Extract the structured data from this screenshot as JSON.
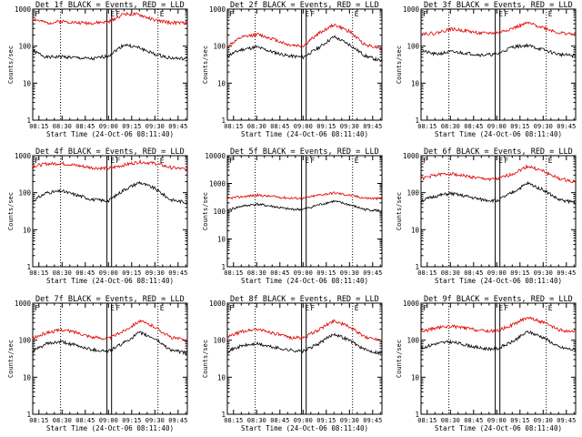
{
  "page": {
    "background": "#ffffff"
  },
  "style": {
    "events_color": "#000000",
    "lld_color": "#e00000",
    "axis_color": "#000000"
  },
  "common": {
    "ylabel": "Counts/sec",
    "xlabel": "Start Time (24-Oct-06 08:11:40)",
    "x_ticks": [
      "08:15",
      "08:30",
      "08:45",
      "09:00",
      "09:15",
      "09:30",
      "09:45"
    ],
    "y_ticks": [
      "1",
      "10",
      "100",
      "1000",
      "10000"
    ]
  },
  "chart_data": [
    {
      "type": "line",
      "title": "Det 1f BLACK = Events, RED = LLD",
      "ylim": [
        1,
        1000
      ],
      "yticks": [
        "1",
        "10",
        "100",
        "1000"
      ],
      "log_y": true,
      "x": [
        "08:11",
        "08:20",
        "08:30",
        "08:40",
        "08:50",
        "09:00",
        "09:10",
        "09:20",
        "09:30",
        "09:40",
        "09:50"
      ],
      "series": [
        {
          "name": "Events",
          "color": "#000000",
          "values": [
            75,
            50,
            52,
            48,
            45,
            55,
            110,
            90,
            60,
            48,
            45
          ]
        },
        {
          "name": "LLD",
          "color": "#e00000",
          "values": [
            550,
            420,
            470,
            430,
            420,
            450,
            750,
            700,
            500,
            430,
            420
          ]
        }
      ],
      "markers": [
        "F",
        "E",
        "F",
        "E"
      ]
    },
    {
      "type": "line",
      "title": "Det 2f BLACK = Events, RED = LLD",
      "ylim": [
        1,
        1000
      ],
      "yticks": [
        "1",
        "10",
        "100",
        "1000"
      ],
      "log_y": true,
      "x": [
        "08:11",
        "08:20",
        "08:30",
        "08:40",
        "08:50",
        "09:00",
        "09:10",
        "09:20",
        "09:30",
        "09:40",
        "09:50"
      ],
      "series": [
        {
          "name": "Events",
          "color": "#000000",
          "values": [
            55,
            80,
            95,
            70,
            55,
            50,
            90,
            180,
            110,
            55,
            40
          ]
        },
        {
          "name": "LLD",
          "color": "#e00000",
          "values": [
            100,
            170,
            210,
            160,
            110,
            100,
            220,
            380,
            250,
            110,
            90
          ]
        }
      ],
      "markers": [
        "F",
        "E",
        "F",
        "E"
      ]
    },
    {
      "type": "line",
      "title": "Det 3f BLACK = Events, RED = LLD",
      "ylim": [
        1,
        1000
      ],
      "yticks": [
        "1",
        "10",
        "100",
        "1000"
      ],
      "log_y": true,
      "x": [
        "08:11",
        "08:20",
        "08:30",
        "08:40",
        "08:50",
        "09:00",
        "09:10",
        "09:20",
        "09:30",
        "09:40",
        "09:50"
      ],
      "series": [
        {
          "name": "Events",
          "color": "#000000",
          "values": [
            75,
            60,
            70,
            65,
            58,
            60,
            95,
            105,
            80,
            60,
            55
          ]
        },
        {
          "name": "LLD",
          "color": "#e00000",
          "values": [
            220,
            220,
            290,
            260,
            220,
            230,
            300,
            420,
            320,
            230,
            210
          ]
        }
      ],
      "markers": [
        "F",
        "E",
        "F",
        "E"
      ]
    },
    {
      "type": "line",
      "title": "Det 4f BLACK = Events, RED = LLD",
      "ylim": [
        1,
        1000
      ],
      "yticks": [
        "1",
        "10",
        "100",
        "1000"
      ],
      "log_y": true,
      "x": [
        "08:11",
        "08:20",
        "08:30",
        "08:40",
        "08:50",
        "09:00",
        "09:10",
        "09:20",
        "09:30",
        "09:40",
        "09:50"
      ],
      "series": [
        {
          "name": "Events",
          "color": "#000000",
          "values": [
            60,
            100,
            110,
            85,
            65,
            60,
            120,
            190,
            130,
            65,
            55
          ]
        },
        {
          "name": "LLD",
          "color": "#e00000",
          "values": [
            520,
            600,
            620,
            540,
            470,
            450,
            560,
            680,
            620,
            480,
            430
          ]
        }
      ],
      "markers": [
        "F",
        "E",
        "F",
        "E"
      ]
    },
    {
      "type": "line",
      "title": "Det 5f BLACK = Events, RED = LLD",
      "ylim": [
        1,
        10000
      ],
      "yticks": [
        "1",
        "10",
        "100",
        "1000",
        "10000"
      ],
      "log_y": true,
      "x": [
        "08:11",
        "08:20",
        "08:30",
        "08:40",
        "08:50",
        "09:00",
        "09:10",
        "09:20",
        "09:30",
        "09:40",
        "09:50"
      ],
      "series": [
        {
          "name": "Events",
          "color": "#000000",
          "values": [
            110,
            150,
            180,
            150,
            120,
            115,
            170,
            230,
            170,
            115,
            105
          ]
        },
        {
          "name": "LLD",
          "color": "#e00000",
          "values": [
            290,
            330,
            380,
            340,
            300,
            290,
            380,
            460,
            380,
            300,
            280
          ]
        }
      ],
      "markers": [
        "F",
        "E",
        "F",
        "E"
      ]
    },
    {
      "type": "line",
      "title": "Det 6f BLACK = Events, RED = LLD",
      "ylim": [
        1,
        1000
      ],
      "yticks": [
        "1",
        "10",
        "100",
        "1000"
      ],
      "log_y": true,
      "x": [
        "08:11",
        "08:20",
        "08:30",
        "08:40",
        "08:50",
        "09:00",
        "09:10",
        "09:20",
        "09:30",
        "09:40",
        "09:50"
      ],
      "series": [
        {
          "name": "Events",
          "color": "#000000",
          "values": [
            60,
            80,
            95,
            80,
            65,
            60,
            100,
            180,
            120,
            65,
            55
          ]
        },
        {
          "name": "LLD",
          "color": "#e00000",
          "values": [
            240,
            300,
            330,
            280,
            240,
            230,
            320,
            520,
            380,
            240,
            200
          ]
        }
      ],
      "markers": [
        "F",
        "E",
        "F",
        "E"
      ]
    },
    {
      "type": "line",
      "title": "Det 7f BLACK = Events, RED = LLD",
      "ylim": [
        1,
        1000
      ],
      "yticks": [
        "1",
        "10",
        "100",
        "1000"
      ],
      "log_y": true,
      "x": [
        "08:11",
        "08:20",
        "08:30",
        "08:40",
        "08:50",
        "09:00",
        "09:10",
        "09:20",
        "09:30",
        "09:40",
        "09:50"
      ],
      "series": [
        {
          "name": "Events",
          "color": "#000000",
          "values": [
            50,
            80,
            90,
            70,
            55,
            50,
            85,
            160,
            110,
            55,
            45
          ]
        },
        {
          "name": "LLD",
          "color": "#e00000",
          "values": [
            110,
            160,
            190,
            160,
            120,
            110,
            180,
            330,
            230,
            120,
            100
          ]
        }
      ],
      "markers": [
        "F",
        "E",
        "F",
        "E"
      ]
    },
    {
      "type": "line",
      "title": "Det 8f BLACK = Events, RED = LLD",
      "ylim": [
        1,
        1000
      ],
      "yticks": [
        "1",
        "10",
        "100",
        "1000"
      ],
      "log_y": true,
      "x": [
        "08:11",
        "08:20",
        "08:30",
        "08:40",
        "08:50",
        "09:00",
        "09:10",
        "09:20",
        "09:30",
        "09:40",
        "09:50"
      ],
      "series": [
        {
          "name": "Events",
          "color": "#000000",
          "values": [
            50,
            70,
            80,
            65,
            55,
            50,
            80,
            150,
            100,
            55,
            45
          ]
        },
        {
          "name": "LLD",
          "color": "#e00000",
          "values": [
            120,
            170,
            200,
            160,
            120,
            115,
            190,
            340,
            230,
            120,
            105
          ]
        }
      ],
      "markers": [
        "F",
        "E",
        "F",
        "E"
      ]
    },
    {
      "type": "line",
      "title": "Det 9f BLACK = Events, RED = LLD",
      "ylim": [
        1,
        1000
      ],
      "yticks": [
        "1",
        "10",
        "100",
        "1000"
      ],
      "log_y": true,
      "x": [
        "08:11",
        "08:20",
        "08:30",
        "08:40",
        "08:50",
        "09:00",
        "09:10",
        "09:20",
        "09:30",
        "09:40",
        "09:50"
      ],
      "series": [
        {
          "name": "Events",
          "color": "#000000",
          "values": [
            60,
            80,
            90,
            75,
            60,
            58,
            90,
            170,
            120,
            65,
            55
          ]
        },
        {
          "name": "LLD",
          "color": "#e00000",
          "values": [
            170,
            210,
            240,
            210,
            180,
            175,
            260,
            420,
            300,
            190,
            165
          ]
        }
      ],
      "markers": [
        "F",
        "E",
        "F",
        "E"
      ]
    }
  ]
}
